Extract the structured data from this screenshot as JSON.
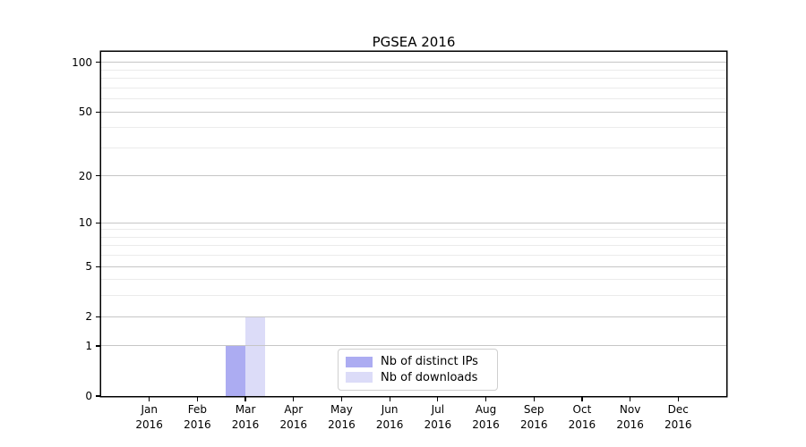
{
  "chart_data": {
    "type": "bar",
    "title": "PGSEA 2016",
    "categories": [
      "Jan",
      "Feb",
      "Mar",
      "Apr",
      "May",
      "Jun",
      "Jul",
      "Aug",
      "Sep",
      "Oct",
      "Nov",
      "Dec"
    ],
    "category_year": "2016",
    "series": [
      {
        "name": "Nb of distinct IPs",
        "color": "#acacf2",
        "values": [
          0,
          0,
          1,
          0,
          0,
          0,
          0,
          0,
          0,
          0,
          0,
          0
        ]
      },
      {
        "name": "Nb of downloads",
        "color": "#dcdcf8",
        "values": [
          0,
          0,
          2,
          0,
          0,
          0,
          0,
          0,
          0,
          0,
          0,
          0
        ]
      }
    ],
    "xlabel": "",
    "ylabel": "",
    "scale": "log1p",
    "ylim": [
      0,
      116
    ],
    "yticks": [
      0,
      1,
      2,
      5,
      10,
      20,
      50,
      100
    ],
    "minor_gridlines": [
      3,
      4,
      6,
      7,
      8,
      9,
      30,
      40,
      60,
      70,
      80,
      90
    ],
    "grid": true,
    "legend_position": "bottom-center"
  },
  "colors": {
    "major_grid": "#c6c6c6",
    "minor_grid": "#ebebeb",
    "spine": "#000000",
    "legend_border": "#cfcfcf"
  }
}
